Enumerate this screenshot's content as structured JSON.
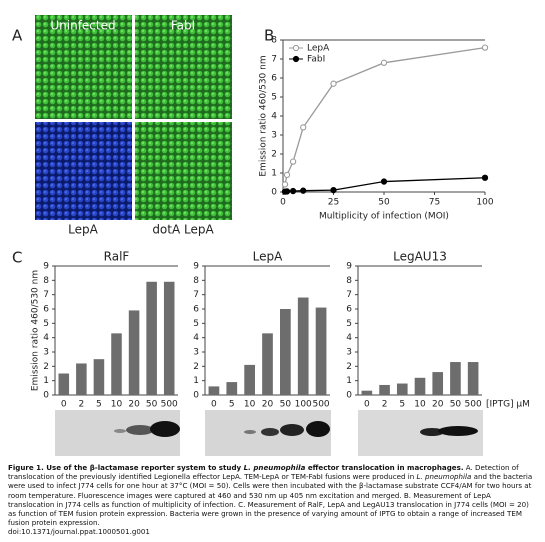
{
  "panels": {
    "a": "A",
    "b": "B",
    "c": "C"
  },
  "microscopy": {
    "labels": [
      "Uninfected",
      "FabI",
      "LepA",
      "dotA LepA"
    ]
  },
  "chart_data": [
    {
      "type": "line",
      "x": [
        1,
        2,
        5,
        10,
        25,
        50,
        100
      ],
      "series": [
        {
          "name": "LepA",
          "color": "#9a9a9a",
          "filled": false,
          "values": [
            0.4,
            0.9,
            1.6,
            3.4,
            5.7,
            6.8,
            7.6
          ]
        },
        {
          "name": "FabI",
          "color": "#000000",
          "filled": true,
          "values": [
            0.02,
            0.03,
            0.05,
            0.07,
            0.1,
            0.55,
            0.75
          ]
        }
      ],
      "xlim": [
        0,
        100
      ],
      "xticks": [
        0,
        25,
        50,
        75,
        100
      ],
      "ylim": [
        0,
        8
      ],
      "yticks": [
        0,
        1,
        2,
        3,
        4,
        5,
        6,
        7,
        8
      ],
      "x_label": "Multiplicity of infection (MOI)",
      "y_label": "Emission ratio 460/530 nm",
      "legend": "top-left"
    },
    {
      "type": "bar",
      "title": "RalF",
      "color": "#6d6d6d",
      "categories": [
        "0",
        "2",
        "5",
        "10",
        "20",
        "50",
        "500"
      ],
      "values": [
        1.5,
        2.2,
        2.5,
        4.3,
        5.9,
        7.9,
        7.9
      ],
      "ylim": [
        0,
        9
      ],
      "yticks": [
        0,
        1,
        2,
        3,
        4,
        5,
        6,
        7,
        8,
        9
      ],
      "y_label": "Emission ratio 460/530 nm"
    },
    {
      "type": "bar",
      "title": "LepA",
      "color": "#6d6d6d",
      "categories": [
        "0",
        "5",
        "10",
        "20",
        "50",
        "100",
        "500"
      ],
      "values": [
        0.6,
        0.9,
        2.1,
        4.3,
        6.0,
        6.8,
        6.1
      ],
      "ylim": [
        0,
        9
      ],
      "yticks": [
        0,
        1,
        2,
        3,
        4,
        5,
        6,
        7,
        8,
        9
      ]
    },
    {
      "type": "bar",
      "title": "LegAU13",
      "color": "#6d6d6d",
      "categories": [
        "0",
        "2",
        "5",
        "10",
        "20",
        "50",
        "500"
      ],
      "values": [
        0.3,
        0.7,
        0.8,
        1.2,
        1.6,
        2.3,
        2.3
      ],
      "ylim": [
        0,
        9
      ],
      "yticks": [
        0,
        1,
        2,
        3,
        4,
        5,
        6,
        7,
        8,
        9
      ],
      "x_label": "[IPTG] μM"
    }
  ],
  "caption": {
    "segments": [
      {
        "text": "Figure 1. Use of the β-lactamase reporter system to study ",
        "bold": true
      },
      {
        "text": "L. pneumophila",
        "bold": true,
        "italic": true
      },
      {
        "text": " effector translocation in macrophages.",
        "bold": true
      },
      {
        "text": " A. Detection of translocation of the previously identified Legionella effector LepA. TEM-LepA or TEM-FabI fusions were produced in "
      },
      {
        "text": "L. pneumophila",
        "italic": true
      },
      {
        "text": " and the bacteria were used to infect J774 cells for one hour at 37°C (MOI = 50). Cells were then incubated with the β-lactamase substrate CCF4/AM for two hours at room temperature. Fluorescence images were captured at 460 and 530 nm up 405 nm excitation and merged. B. Measurement of LepA translocation in J774 cells as function of multiplicity of infection. C. Measurement of RalF, LepA and LegAU13 translocation in J774 cells (MOI = 20) as function of TEM fusion protein expression. Bacteria were grown in the presence of varying amount of IPTG to obtain a range of increased TEM fusion protein expression."
      }
    ],
    "doi": "doi:10.1371/journal.ppat.1000501.g001"
  }
}
